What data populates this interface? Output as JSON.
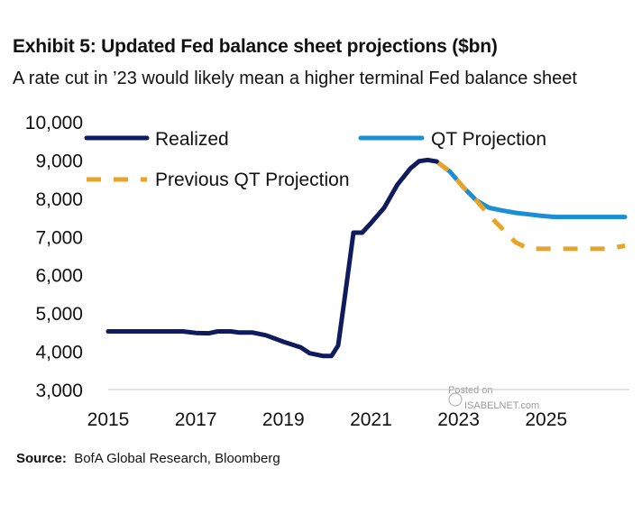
{
  "header": {
    "title": "Exhibit 5: Updated Fed balance sheet projections ($bn)",
    "subtitle": "A rate cut in ’23 would likely mean a higher terminal Fed balance sheet"
  },
  "footer": {
    "source_label": "Source:",
    "source_text": "BofA Global Research, Bloomberg"
  },
  "watermark": {
    "line1": "Posted on",
    "line2": "ISABELNET.com"
  },
  "colors": {
    "realized": "#0f1b5c",
    "qt_projection": "#1a8fd4",
    "previous_qt_projection": "#e8a32a"
  },
  "chart_data": {
    "type": "line",
    "title": "Exhibit 5: Updated Fed balance sheet projections ($bn)",
    "subtitle": "A rate cut in ’23 would likely mean a higher terminal Fed balance sheet",
    "xlim": [
      2015,
      2026.9
    ],
    "ylim": [
      3000,
      10000
    ],
    "x_ticks": [
      2015,
      2017,
      2019,
      2021,
      2023,
      2025
    ],
    "x_tick_labels": [
      "2015",
      "2017",
      "2019",
      "2021",
      "2023",
      "2025"
    ],
    "y_ticks": [
      3000,
      4000,
      5000,
      6000,
      7000,
      8000,
      9000,
      10000
    ],
    "y_tick_labels": [
      "3,000",
      "4,000",
      "5,000",
      "6,000",
      "7,000",
      "8,000",
      "9,000",
      "10,000"
    ],
    "grid": false,
    "legend_position": "top",
    "series": [
      {
        "name": "Realized",
        "style": "solid",
        "color": "#0f1b5c",
        "x": [
          2015.0,
          2015.5,
          2016.0,
          2016.5,
          2016.7,
          2017.0,
          2017.3,
          2017.5,
          2017.8,
          2018.0,
          2018.3,
          2018.6,
          2019.0,
          2019.4,
          2019.6,
          2019.9,
          2020.1,
          2020.25,
          2020.4,
          2020.6,
          2020.8,
          2021.0,
          2021.3,
          2021.6,
          2021.9,
          2022.1,
          2022.3,
          2022.5
        ],
        "y": [
          4520,
          4520,
          4520,
          4520,
          4520,
          4480,
          4470,
          4520,
          4520,
          4490,
          4490,
          4420,
          4250,
          4100,
          3950,
          3880,
          3880,
          4150,
          5400,
          7100,
          7100,
          7350,
          7750,
          8350,
          8780,
          8970,
          9000,
          8960
        ]
      },
      {
        "name": "QT Projection",
        "style": "solid",
        "color": "#1a8fd4",
        "x": [
          2022.5,
          2022.8,
          2023.1,
          2023.4,
          2023.7,
          2024.0,
          2024.3,
          2024.6,
          2024.9,
          2025.2,
          2025.6,
          2026.0,
          2026.4,
          2026.8
        ],
        "y": [
          8960,
          8700,
          8300,
          7950,
          7750,
          7680,
          7620,
          7580,
          7540,
          7510,
          7510,
          7510,
          7510,
          7510
        ]
      },
      {
        "name": "Previous QT Projection",
        "style": "dashed",
        "color": "#e8a32a",
        "x": [
          2022.5,
          2022.8,
          2023.1,
          2023.4,
          2023.7,
          2024.0,
          2024.3,
          2024.6,
          2024.9,
          2025.2,
          2025.6,
          2026.0,
          2026.4,
          2026.8
        ],
        "y": [
          8960,
          8700,
          8300,
          7950,
          7550,
          7200,
          6850,
          6680,
          6680,
          6680,
          6680,
          6680,
          6680,
          6760
        ]
      }
    ]
  }
}
